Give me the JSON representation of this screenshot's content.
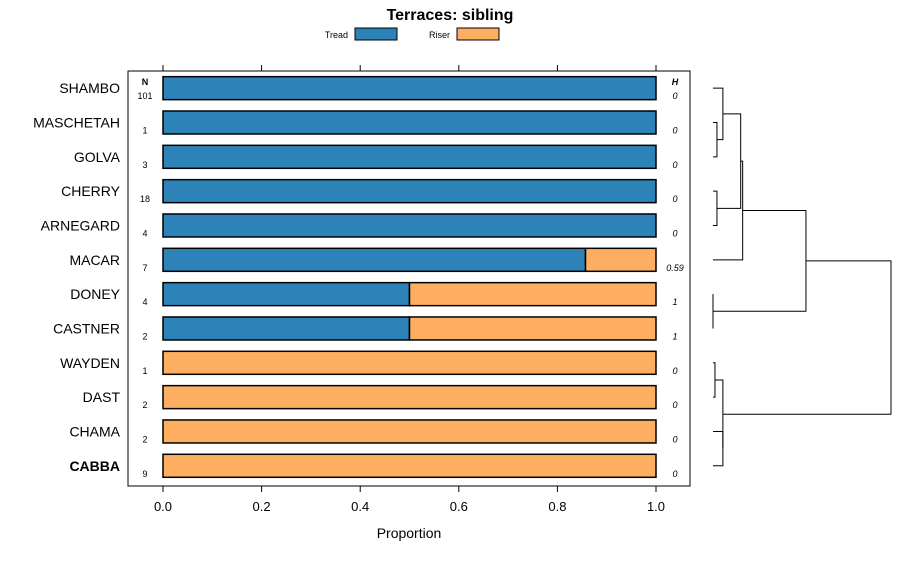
{
  "chart_data": {
    "type": "bar",
    "orientation": "horizontal",
    "stacked": true,
    "title": "Terraces: sibling",
    "xlabel": "Proportion",
    "xlim": [
      0,
      1
    ],
    "x_ticks": [
      "0.0",
      "0.2",
      "0.4",
      "0.6",
      "0.8",
      "1.0"
    ],
    "legend": {
      "placement": "top",
      "entries": [
        {
          "name": "Tread",
          "color": "#2d82b8"
        },
        {
          "name": "Riser",
          "color": "#fdae61"
        }
      ]
    },
    "n_header": "N",
    "h_header": "H",
    "categories": [
      "SHAMBO",
      "MASCHETAH",
      "GOLVA",
      "CHERRY",
      "ARNEGARD",
      "MACAR",
      "DONEY",
      "CASTNER",
      "WAYDEN",
      "DAST",
      "CHAMA",
      "CABBA"
    ],
    "highlighted_category": "CABBA",
    "n": [
      "101",
      "1",
      "3",
      "18",
      "4",
      "7",
      "4",
      "2",
      "1",
      "2",
      "2",
      "9"
    ],
    "h": [
      "0",
      "0",
      "0",
      "0",
      "0",
      "0.59",
      "1",
      "1",
      "0",
      "0",
      "0",
      "0"
    ],
    "series": [
      {
        "name": "Tread",
        "values": [
          1,
          1,
          1,
          1,
          1,
          0.857,
          0.5,
          0.5,
          0,
          0,
          0,
          0
        ]
      },
      {
        "name": "Riser",
        "values": [
          0,
          0,
          0,
          0,
          0,
          0.143,
          0.5,
          0.5,
          1,
          1,
          1,
          1
        ]
      }
    ],
    "dendrogram": {
      "leaf_order": [
        "SHAMBO",
        "MASCHETAH",
        "GOLVA",
        "CHERRY",
        "ARNEGARD",
        "MACAR",
        "DONEY",
        "CASTNER",
        "WAYDEN",
        "DAST",
        "CHAMA",
        "CABBA"
      ],
      "merges": [
        {
          "a": "MASCHETAH",
          "b": "GOLVA",
          "height": 0.02
        },
        {
          "a": "SHAMBO",
          "b": 0,
          "height": 0.05
        },
        {
          "a": "CHERRY",
          "b": "ARNEGARD",
          "height": 0.02
        },
        {
          "a": 1,
          "b": 2,
          "height": 0.14
        },
        {
          "a": 3,
          "b": "MACAR",
          "height": 0.15
        },
        {
          "a": "DONEY",
          "b": "CASTNER",
          "height": 0.0
        },
        {
          "a": 4,
          "b": 5,
          "height": 0.47
        },
        {
          "a": "WAYDEN",
          "b": "DAST",
          "height": 0.01
        },
        {
          "a": "CHAMA",
          "b": "CABBA",
          "height": 0.05
        },
        {
          "a": 7,
          "b": 8,
          "height": 0.05
        },
        {
          "a": 6,
          "b": 9,
          "height": 0.9
        }
      ]
    }
  }
}
